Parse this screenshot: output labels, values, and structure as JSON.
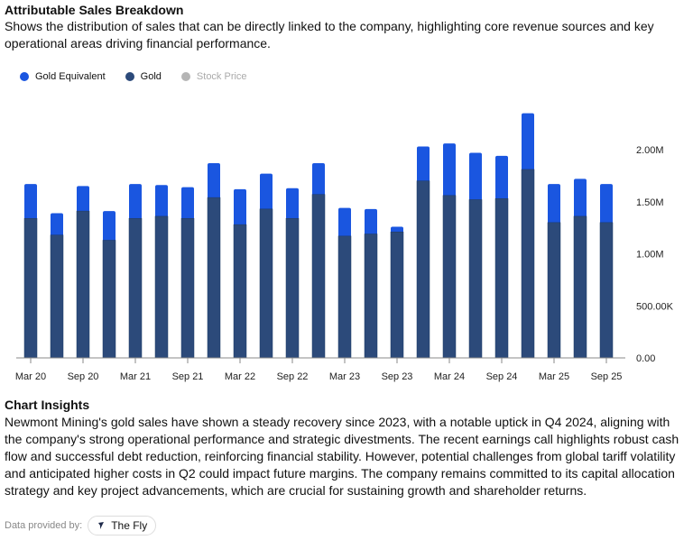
{
  "header": {
    "title": "Attributable Sales Breakdown",
    "subtitle": "Shows the distribution of sales that can be directly linked to the company, highlighting core revenue sources and key operational areas driving financial performance."
  },
  "colors": {
    "gold_equivalent": "#1a56e0",
    "gold": "#2c4a7a",
    "stock_price": "#b5b5b5"
  },
  "chart_data": {
    "type": "bar",
    "stacked": true,
    "categories": [
      "Mar 20",
      "Jun 20",
      "Sep 20",
      "Dec 20",
      "Mar 21",
      "Jun 21",
      "Sep 21",
      "Dec 21",
      "Mar 22",
      "Jun 22",
      "Sep 22",
      "Dec 22",
      "Mar 23",
      "Jun 23",
      "Sep 23",
      "Dec 23",
      "Mar 24",
      "Jun 24",
      "Sep 24",
      "Dec 24",
      "Mar 25",
      "Jun 25",
      "Sep 25"
    ],
    "xtick_labels": [
      "Mar 20",
      "Sep 20",
      "Mar 21",
      "Sep 21",
      "Mar 22",
      "Sep 22",
      "Mar 23",
      "Sep 23",
      "Mar 24",
      "Sep 24",
      "Mar 25",
      "Sep 25"
    ],
    "series": [
      {
        "name": "Gold",
        "values": [
          1340000,
          1180000,
          1410000,
          1130000,
          1340000,
          1360000,
          1340000,
          1540000,
          1280000,
          1430000,
          1340000,
          1570000,
          1170000,
          1190000,
          1210000,
          1700000,
          1560000,
          1520000,
          1530000,
          1810000,
          1300000,
          1360000,
          1300000
        ]
      },
      {
        "name": "Gold Equivalent",
        "values": [
          330000,
          210000,
          240000,
          280000,
          330000,
          300000,
          300000,
          330000,
          340000,
          340000,
          290000,
          300000,
          270000,
          240000,
          50000,
          330000,
          500000,
          450000,
          410000,
          540000,
          370000,
          360000,
          370000
        ]
      }
    ],
    "legend": [
      "Gold Equivalent",
      "Gold",
      "Stock Price"
    ],
    "legend_inactive": [
      "Stock Price"
    ],
    "yticks": [
      0,
      500000,
      1000000,
      1500000,
      2000000
    ],
    "ytick_labels": [
      "0.00",
      "500.00K",
      "1.00M",
      "1.50M",
      "2.00M"
    ],
    "ylim": [
      0,
      2400000
    ],
    "yaxis_position": "right",
    "legend_position": "top-left",
    "grid": false
  },
  "insights": {
    "title": "Chart Insights",
    "text": "Newmont Mining's gold sales have shown a steady recovery since 2023, with a notable uptick in Q4 2024, aligning with the company's strong operational performance and strategic divestments. The recent earnings call highlights robust cash flow and successful debt reduction, reinforcing financial stability. However, potential challenges from global tariff volatility and anticipated higher costs in Q2 could impact future margins. The company remains committed to its capital allocation strategy and key project advancements, which are crucial for sustaining growth and shareholder returns."
  },
  "footer": {
    "label": "Data provided by:",
    "provider": "The Fly"
  }
}
